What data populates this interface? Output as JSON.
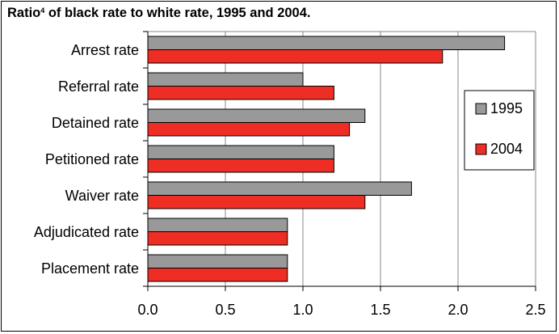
{
  "chart_data": {
    "type": "bar",
    "orientation": "horizontal",
    "title": "Ratio",
    "title_superscript": "4",
    "title_rest": " of black rate to white rate, 1995 and 2004.",
    "categories": [
      "Arrest rate",
      "Referral rate",
      "Detained rate",
      "Petitioned rate",
      "Waiver rate",
      "Adjudicated rate",
      "Placement rate"
    ],
    "series": [
      {
        "name": "1995",
        "color": "#999999",
        "values": [
          2.3,
          1.0,
          1.4,
          1.2,
          1.7,
          0.9,
          0.9
        ]
      },
      {
        "name": "2004",
        "color": "#ee2e24",
        "values": [
          1.9,
          1.2,
          1.3,
          1.2,
          1.4,
          0.9,
          0.9
        ]
      }
    ],
    "xlim": [
      0,
      2.5
    ],
    "xticks": [
      "0.0",
      "0.5",
      "1.0",
      "1.5",
      "2.0",
      "2.5"
    ],
    "grid": true,
    "legend": "right"
  }
}
